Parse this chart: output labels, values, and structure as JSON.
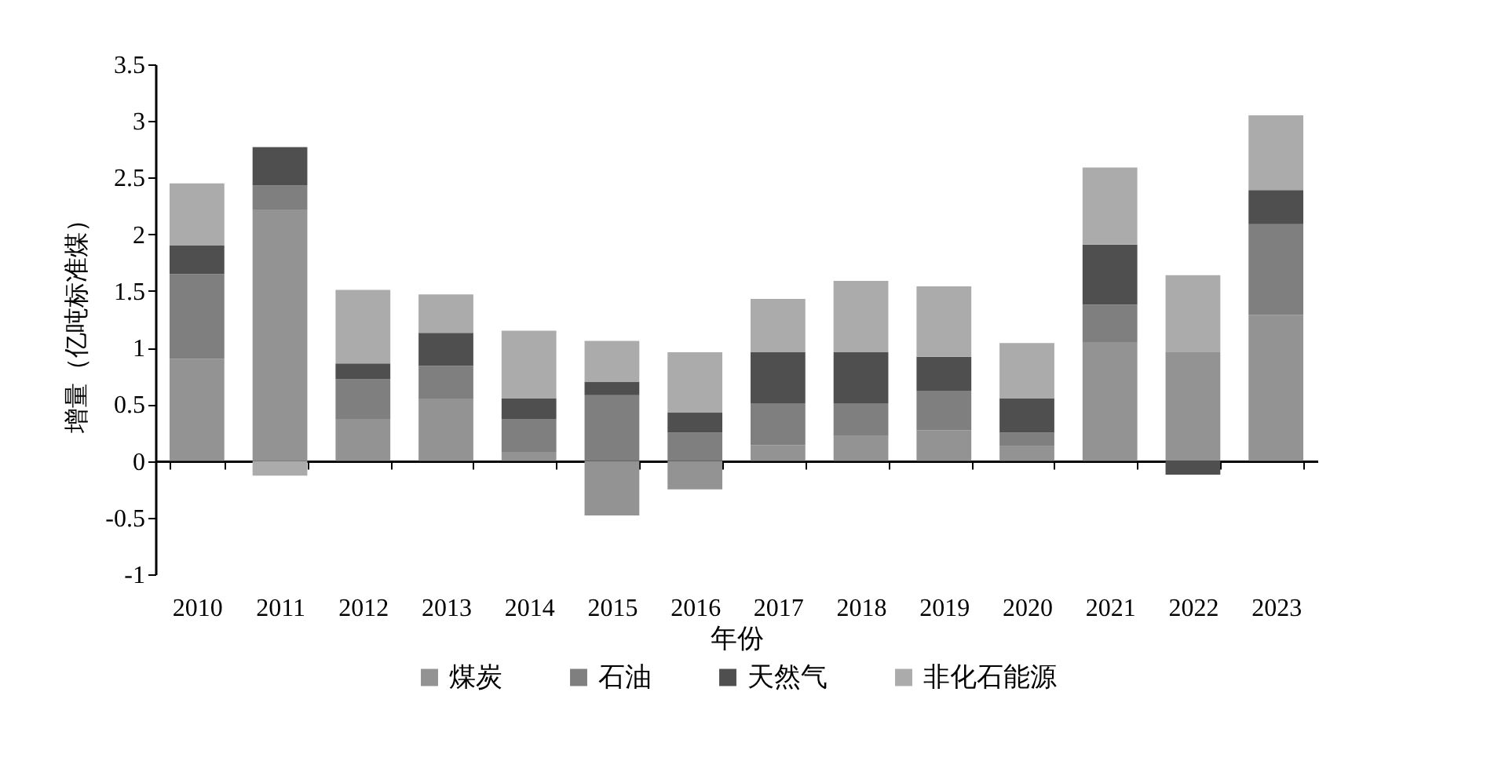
{
  "chart_data": {
    "type": "bar",
    "stacked": true,
    "xlabel": "年份",
    "ylabel": "增量（亿吨标准煤）",
    "categories": [
      "2010",
      "2011",
      "2012",
      "2013",
      "2014",
      "2015",
      "2016",
      "2017",
      "2018",
      "2019",
      "2020",
      "2021",
      "2022",
      "2023"
    ],
    "series": [
      {
        "name": "煤炭",
        "color": "#939393",
        "values": [
          0.9,
          2.22,
          0.37,
          0.55,
          0.08,
          -0.48,
          -0.25,
          0.14,
          0.22,
          0.27,
          0.13,
          1.05,
          0.96,
          1.29
        ]
      },
      {
        "name": "石油",
        "color": "#7f7f7f",
        "values": [
          0.75,
          0.21,
          0.35,
          0.29,
          0.29,
          0.58,
          0.25,
          0.37,
          0.29,
          0.35,
          0.12,
          0.33,
          0,
          0.8
        ]
      },
      {
        "name": "天然气",
        "color": "#4f4f4f",
        "values": [
          0.25,
          0.34,
          0.14,
          0.29,
          0.18,
          0.12,
          0.18,
          0.45,
          0.45,
          0.3,
          0.3,
          0.53,
          -0.12,
          0.3
        ]
      },
      {
        "name": "非化石能源",
        "color": "#ababab",
        "values": [
          0.55,
          -0.13,
          0.65,
          0.34,
          0.6,
          0.36,
          0.53,
          0.47,
          0.63,
          0.62,
          0.49,
          0.68,
          0.68,
          0.66
        ]
      }
    ],
    "ylim": [
      -1,
      3.5
    ],
    "yticks": [
      -1,
      -0.5,
      0,
      0.5,
      1,
      1.5,
      2,
      2.5,
      3,
      3.5
    ],
    "legend": "bottom"
  }
}
